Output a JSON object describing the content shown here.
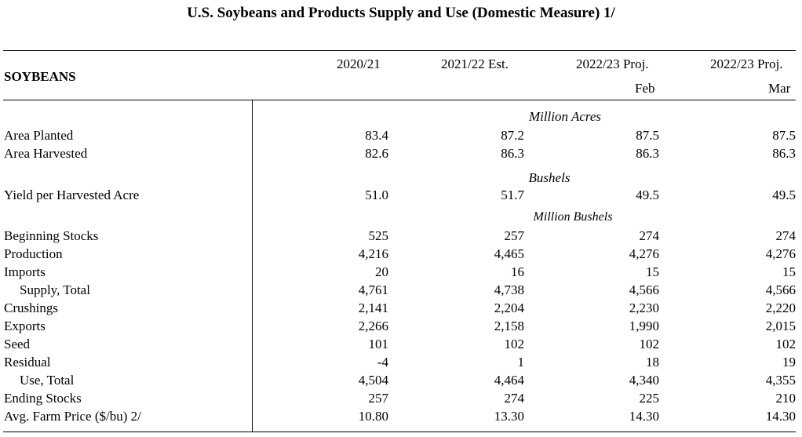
{
  "title": "U.S. Soybeans and Products Supply and Use (Domestic Measure)  1/",
  "section": "SOYBEANS",
  "columns": [
    {
      "line1": "2020/21",
      "line2": ""
    },
    {
      "line1": "2021/22 Est.",
      "line2": ""
    },
    {
      "line1": "2022/23 Proj.",
      "line2": "Feb"
    },
    {
      "line1": "2022/23 Proj.",
      "line2": "Mar"
    }
  ],
  "units": {
    "acres": "Million Acres",
    "bushels": "Bushels",
    "million_bushels": "Million Bushels"
  },
  "rows": [
    {
      "label": "Area Planted",
      "values": [
        "83.4",
        "87.2",
        "87.5",
        "87.5"
      ]
    },
    {
      "label": "Area Harvested",
      "values": [
        "82.6",
        "86.3",
        "86.3",
        "86.3"
      ]
    },
    {
      "label": "Yield per Harvested Acre",
      "values": [
        "51.0",
        "51.7",
        "49.5",
        "49.5"
      ]
    },
    {
      "label": "Beginning Stocks",
      "values": [
        "525",
        "257",
        "274",
        "274"
      ]
    },
    {
      "label": "Production",
      "values": [
        "4,216",
        "4,465",
        "4,276",
        "4,276"
      ]
    },
    {
      "label": "Imports",
      "values": [
        "20",
        "16",
        "15",
        "15"
      ]
    },
    {
      "label": "Supply, Total",
      "values": [
        "4,761",
        "4,738",
        "4,566",
        "4,566"
      ]
    },
    {
      "label": "Crushings",
      "values": [
        "2,141",
        "2,204",
        "2,230",
        "2,220"
      ]
    },
    {
      "label": "Exports",
      "values": [
        "2,266",
        "2,158",
        "1,990",
        "2,015"
      ]
    },
    {
      "label": "Seed",
      "values": [
        "101",
        "102",
        "102",
        "102"
      ]
    },
    {
      "label": "Residual",
      "values": [
        "-4",
        "1",
        "18",
        "19"
      ]
    },
    {
      "label": "Use, Total",
      "values": [
        "4,504",
        "4,464",
        "4,340",
        "4,355"
      ]
    },
    {
      "label": "Ending Stocks",
      "values": [
        "257",
        "274",
        "225",
        "210"
      ]
    },
    {
      "label": "Avg. Farm Price ($/bu)  2/",
      "values": [
        "10.80",
        "13.30",
        "14.30",
        "14.30"
      ]
    }
  ]
}
